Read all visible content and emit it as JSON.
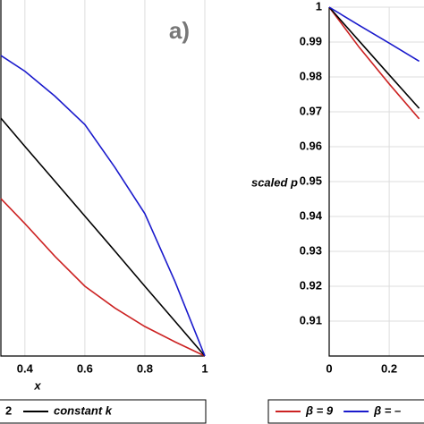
{
  "chart_data": [
    {
      "type": "line",
      "annotation": "a)",
      "x_label": "x",
      "legend_fragment": "2",
      "x": [
        0.32,
        0.4,
        0.5,
        0.6,
        0.7,
        0.8,
        0.9,
        1
      ],
      "xlim": [
        0.32,
        1
      ],
      "xticks": [
        0.4,
        0.6,
        0.8,
        1
      ],
      "ylim": [
        0,
        1
      ],
      "grid": true,
      "series": [
        {
          "color": "#cc2222",
          "values": [
            0.442,
            0.372,
            0.28,
            0.196,
            0.135,
            0.083,
            0.04,
            0
          ]
        },
        {
          "name": "constant k",
          "color": "#000000",
          "values": [
            0.668,
            0.589,
            0.491,
            0.393,
            0.295,
            0.196,
            0.098,
            0
          ]
        },
        {
          "color": "#1a1acc",
          "values": [
            0.844,
            0.8,
            0.73,
            0.65,
            0.53,
            0.4,
            0.21,
            0
          ]
        }
      ]
    },
    {
      "type": "line",
      "y_label": "scaled p",
      "x": [
        0,
        0.1,
        0.2,
        0.3
      ],
      "xlim": [
        0,
        0.316
      ],
      "xticks": [
        0,
        0.2
      ],
      "ylim": [
        0.9,
        1
      ],
      "yticks": [
        0.91,
        0.92,
        0.93,
        0.94,
        0.95,
        0.96,
        0.97,
        0.98,
        0.99,
        1
      ],
      "grid": true,
      "series": [
        {
          "name": "β = 9",
          "color": "#cc2222",
          "values": [
            1,
            0.9885,
            0.978,
            0.968
          ]
        },
        {
          "color": "#000000",
          "values": [
            1,
            0.9903,
            0.9806,
            0.971
          ]
        },
        {
          "name": "β = –",
          "color": "#1a1acc",
          "values": [
            1,
            0.9948,
            0.9897,
            0.9845
          ]
        }
      ]
    }
  ]
}
